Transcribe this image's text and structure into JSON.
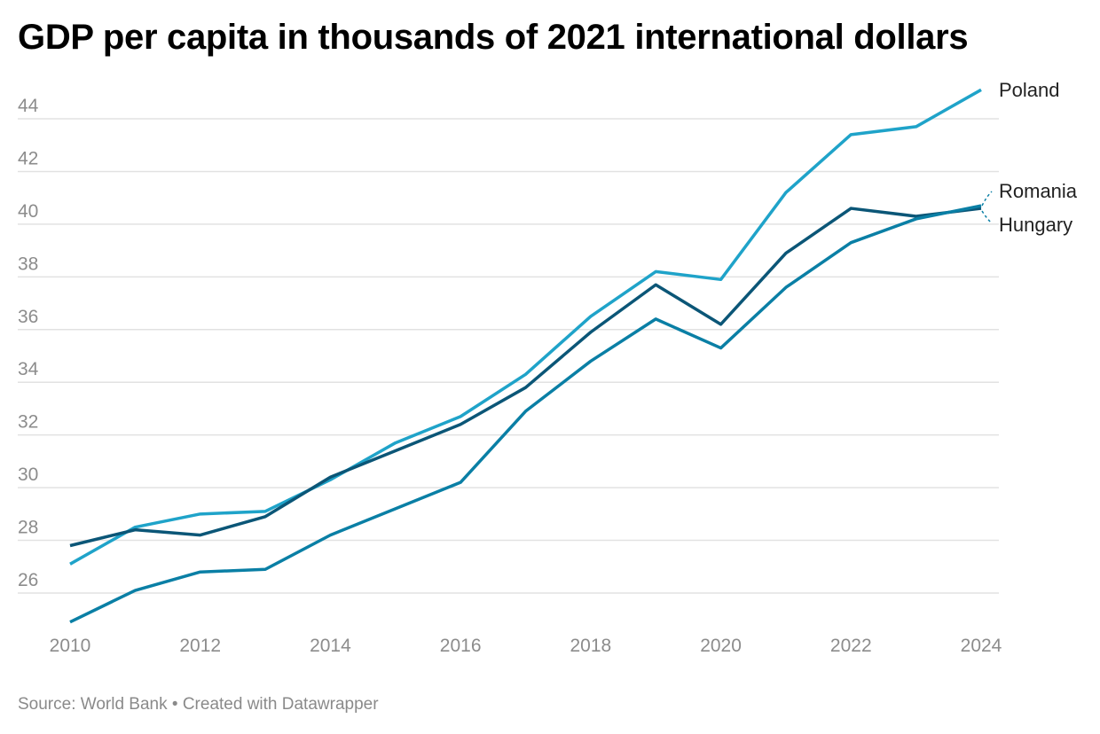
{
  "chart_data": {
    "type": "line",
    "title": "GDP per capita in thousands of 2021 international dollars",
    "source": "Source: World Bank • Created with Datawrapper",
    "xlabel": "",
    "ylabel": "",
    "x": [
      2010,
      2011,
      2012,
      2013,
      2014,
      2015,
      2016,
      2017,
      2018,
      2019,
      2020,
      2021,
      2022,
      2023,
      2024
    ],
    "xticks": [
      2010,
      2012,
      2014,
      2016,
      2018,
      2020,
      2022,
      2024
    ],
    "yticks": [
      26,
      28,
      30,
      32,
      34,
      36,
      38,
      40,
      42,
      44
    ],
    "xlim": [
      2010,
      2024
    ],
    "ylim": [
      24.9,
      45.2
    ],
    "grid": true,
    "legend": "direct labels at right end",
    "series": [
      {
        "name": "Poland",
        "color": "#1fa3c9",
        "values": [
          27.1,
          28.5,
          29.0,
          29.1,
          30.3,
          31.7,
          32.7,
          34.3,
          36.5,
          38.2,
          37.9,
          41.2,
          43.4,
          43.7,
          45.1
        ]
      },
      {
        "name": "Romania",
        "color": "#0b5677",
        "values": [
          27.8,
          28.4,
          28.2,
          28.9,
          30.4,
          31.4,
          32.4,
          33.8,
          35.9,
          37.7,
          36.2,
          38.9,
          40.6,
          40.3,
          40.6
        ]
      },
      {
        "name": "Hungary",
        "color": "#0a7fa5",
        "values": [
          24.9,
          26.1,
          26.8,
          26.9,
          28.2,
          29.2,
          30.2,
          32.9,
          34.8,
          36.4,
          35.3,
          37.6,
          39.3,
          40.2,
          40.7
        ]
      }
    ]
  }
}
